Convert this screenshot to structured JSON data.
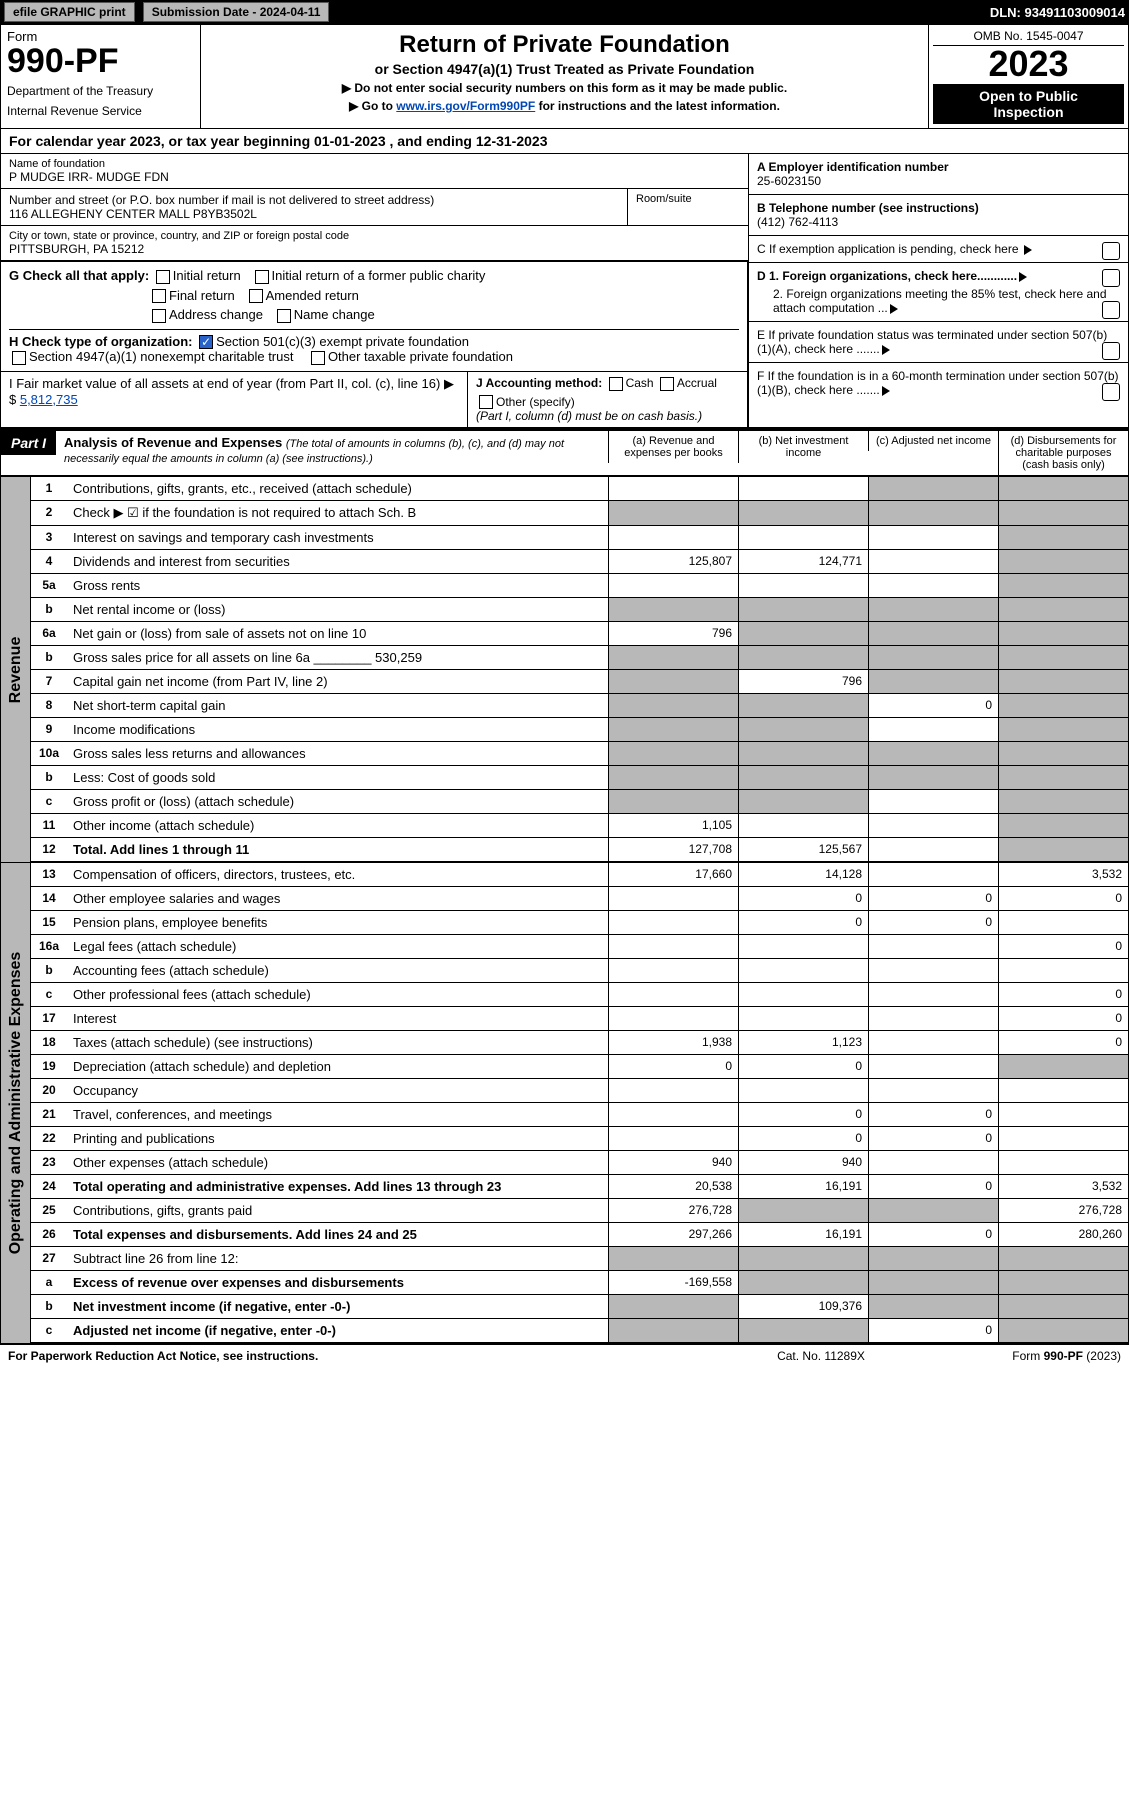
{
  "top": {
    "efile": "efile GRAPHIC print",
    "sub_date_label": "Submission Date - 2024-04-11",
    "dln": "DLN: 93491103009014"
  },
  "header": {
    "form_label": "Form",
    "form_number": "990-PF",
    "dept1": "Department of the Treasury",
    "dept2": "Internal Revenue Service",
    "title": "Return of Private Foundation",
    "subtitle": "or Section 4947(a)(1) Trust Treated as Private Foundation",
    "note1": "▶ Do not enter social security numbers on this form as it may be made public.",
    "note2_pre": "▶ Go to ",
    "note2_link": "www.irs.gov/Form990PF",
    "note2_post": " for instructions and the latest information.",
    "omb": "OMB No. 1545-0047",
    "year": "2023",
    "open1": "Open to Public",
    "open2": "Inspection"
  },
  "cal": {
    "pre": "For calendar year 2023, or tax year beginning ",
    "begin": "01-01-2023",
    "mid": " , and ending ",
    "end": "12-31-2023"
  },
  "id": {
    "name_label": "Name of foundation",
    "name": "P MUDGE IRR- MUDGE FDN",
    "addr_label": "Number and street (or P.O. box number if mail is not delivered to street address)",
    "addr": "116 ALLEGHENY CENTER MALL P8YB3502L",
    "room_label": "Room/suite",
    "city_label": "City or town, state or province, country, and ZIP or foreign postal code",
    "city": "PITTSBURGH, PA  15212",
    "a_label": "A Employer identification number",
    "a_val": "25-6023150",
    "b_label": "B Telephone number (see instructions)",
    "b_val": "(412) 762-4113",
    "c_label": "C If exemption application is pending, check here",
    "d1": "D 1. Foreign organizations, check here............",
    "d2": "2. Foreign organizations meeting the 85% test, check here and attach computation ...",
    "e": "E  If private foundation status was terminated under section 507(b)(1)(A), check here .......",
    "f": "F  If the foundation is in a 60-month termination under section 507(b)(1)(B), check here .......",
    "g_label": "G Check all that apply:",
    "g_initial": "Initial return",
    "g_initial_former": "Initial return of a former public charity",
    "g_final": "Final return",
    "g_amended": "Amended return",
    "g_address": "Address change",
    "g_name": "Name change",
    "h_label": "H Check type of organization:",
    "h_501c3": "Section 501(c)(3) exempt private foundation",
    "h_4947": "Section 4947(a)(1) nonexempt charitable trust",
    "h_other_tax": "Other taxable private foundation",
    "i_label": "I Fair market value of all assets at end of year (from Part II, col. (c), line 16)",
    "i_val": "5,812,735",
    "j_label": "J Accounting method:",
    "j_cash": "Cash",
    "j_accrual": "Accrual",
    "j_other": "Other (specify)",
    "j_note": "(Part I, column (d) must be on cash basis.)"
  },
  "part1": {
    "tag": "Part I",
    "title": "Analysis of Revenue and Expenses",
    "title_note": "(The total of amounts in columns (b), (c), and (d) may not necessarily equal the amounts in column (a) (see instructions).)",
    "col_a": "(a) Revenue and expenses per books",
    "col_b": "(b) Net investment income",
    "col_c": "(c) Adjusted net income",
    "col_d": "(d) Disbursements for charitable purposes (cash basis only)"
  },
  "sections": {
    "rev": "Revenue",
    "exp": "Operating and Administrative Expenses"
  },
  "rows": [
    {
      "n": "1",
      "label": "Contributions, gifts, grants, etc., received (attach schedule)",
      "a": "",
      "b": "",
      "c": "grey",
      "d": "grey"
    },
    {
      "n": "2",
      "label": "Check ▶ ☑ if the foundation is not required to attach Sch. B",
      "a": "grey",
      "b": "grey",
      "c": "grey",
      "d": "grey",
      "nobord": true
    },
    {
      "n": "3",
      "label": "Interest on savings and temporary cash investments",
      "a": "",
      "b": "",
      "c": "",
      "d": "grey"
    },
    {
      "n": "4",
      "label": "Dividends and interest from securities",
      "a": "125,807",
      "b": "124,771",
      "c": "",
      "d": "grey"
    },
    {
      "n": "5a",
      "label": "Gross rents",
      "a": "",
      "b": "",
      "c": "",
      "d": "grey"
    },
    {
      "n": "b",
      "label": "Net rental income or (loss)",
      "a": "grey",
      "b": "grey",
      "c": "grey",
      "d": "grey"
    },
    {
      "n": "6a",
      "label": "Net gain or (loss) from sale of assets not on line 10",
      "a": "796",
      "b": "grey",
      "c": "grey",
      "d": "grey"
    },
    {
      "n": "b",
      "label": "Gross sales price for all assets on line 6a ________ 530,259",
      "a": "grey",
      "b": "grey",
      "c": "grey",
      "d": "grey"
    },
    {
      "n": "7",
      "label": "Capital gain net income (from Part IV, line 2)",
      "a": "grey",
      "b": "796",
      "c": "grey",
      "d": "grey"
    },
    {
      "n": "8",
      "label": "Net short-term capital gain",
      "a": "grey",
      "b": "grey",
      "c": "0",
      "d": "grey"
    },
    {
      "n": "9",
      "label": "Income modifications",
      "a": "grey",
      "b": "grey",
      "c": "",
      "d": "grey"
    },
    {
      "n": "10a",
      "label": "Gross sales less returns and allowances",
      "a": "grey",
      "b": "grey",
      "c": "grey",
      "d": "grey"
    },
    {
      "n": "b",
      "label": "Less: Cost of goods sold",
      "a": "grey",
      "b": "grey",
      "c": "grey",
      "d": "grey"
    },
    {
      "n": "c",
      "label": "Gross profit or (loss) (attach schedule)",
      "a": "grey",
      "b": "grey",
      "c": "",
      "d": "grey"
    },
    {
      "n": "11",
      "label": "Other income (attach schedule)",
      "a": "1,105",
      "b": "",
      "c": "",
      "d": "grey"
    },
    {
      "n": "12",
      "label": "Total. Add lines 1 through 11",
      "a": "127,708",
      "b": "125,567",
      "c": "",
      "d": "grey",
      "bold": true
    }
  ],
  "exp_rows": [
    {
      "n": "13",
      "label": "Compensation of officers, directors, trustees, etc.",
      "a": "17,660",
      "b": "14,128",
      "c": "",
      "d": "3,532"
    },
    {
      "n": "14",
      "label": "Other employee salaries and wages",
      "a": "",
      "b": "0",
      "c": "0",
      "d": "0"
    },
    {
      "n": "15",
      "label": "Pension plans, employee benefits",
      "a": "",
      "b": "0",
      "c": "0",
      "d": ""
    },
    {
      "n": "16a",
      "label": "Legal fees (attach schedule)",
      "a": "",
      "b": "",
      "c": "",
      "d": "0"
    },
    {
      "n": "b",
      "label": "Accounting fees (attach schedule)",
      "a": "",
      "b": "",
      "c": "",
      "d": ""
    },
    {
      "n": "c",
      "label": "Other professional fees (attach schedule)",
      "a": "",
      "b": "",
      "c": "",
      "d": "0"
    },
    {
      "n": "17",
      "label": "Interest",
      "a": "",
      "b": "",
      "c": "",
      "d": "0"
    },
    {
      "n": "18",
      "label": "Taxes (attach schedule) (see instructions)",
      "a": "1,938",
      "b": "1,123",
      "c": "",
      "d": "0"
    },
    {
      "n": "19",
      "label": "Depreciation (attach schedule) and depletion",
      "a": "0",
      "b": "0",
      "c": "",
      "d": "grey"
    },
    {
      "n": "20",
      "label": "Occupancy",
      "a": "",
      "b": "",
      "c": "",
      "d": ""
    },
    {
      "n": "21",
      "label": "Travel, conferences, and meetings",
      "a": "",
      "b": "0",
      "c": "0",
      "d": ""
    },
    {
      "n": "22",
      "label": "Printing and publications",
      "a": "",
      "b": "0",
      "c": "0",
      "d": ""
    },
    {
      "n": "23",
      "label": "Other expenses (attach schedule)",
      "a": "940",
      "b": "940",
      "c": "",
      "d": ""
    },
    {
      "n": "24",
      "label": "Total operating and administrative expenses. Add lines 13 through 23",
      "a": "20,538",
      "b": "16,191",
      "c": "0",
      "d": "3,532",
      "bold": true
    },
    {
      "n": "25",
      "label": "Contributions, gifts, grants paid",
      "a": "276,728",
      "b": "grey",
      "c": "grey",
      "d": "276,728"
    },
    {
      "n": "26",
      "label": "Total expenses and disbursements. Add lines 24 and 25",
      "a": "297,266",
      "b": "16,191",
      "c": "0",
      "d": "280,260",
      "bold": true
    },
    {
      "n": "27",
      "label": "Subtract line 26 from line 12:",
      "a": "grey",
      "b": "grey",
      "c": "grey",
      "d": "grey"
    },
    {
      "n": "a",
      "label": "Excess of revenue over expenses and disbursements",
      "a": "-169,558",
      "b": "grey",
      "c": "grey",
      "d": "grey",
      "bold": true
    },
    {
      "n": "b",
      "label": "Net investment income (if negative, enter -0-)",
      "a": "grey",
      "b": "109,376",
      "c": "grey",
      "d": "grey",
      "bold": true
    },
    {
      "n": "c",
      "label": "Adjusted net income (if negative, enter -0-)",
      "a": "grey",
      "b": "grey",
      "c": "0",
      "d": "grey",
      "bold": true
    }
  ],
  "footer": {
    "left": "For Paperwork Reduction Act Notice, see instructions.",
    "mid": "Cat. No. 11289X",
    "right": "Form 990-PF (2023)"
  },
  "colors": {
    "black": "#000000",
    "grey": "#b8b8b8",
    "link": "#0047b3",
    "check": "#2962c8"
  }
}
